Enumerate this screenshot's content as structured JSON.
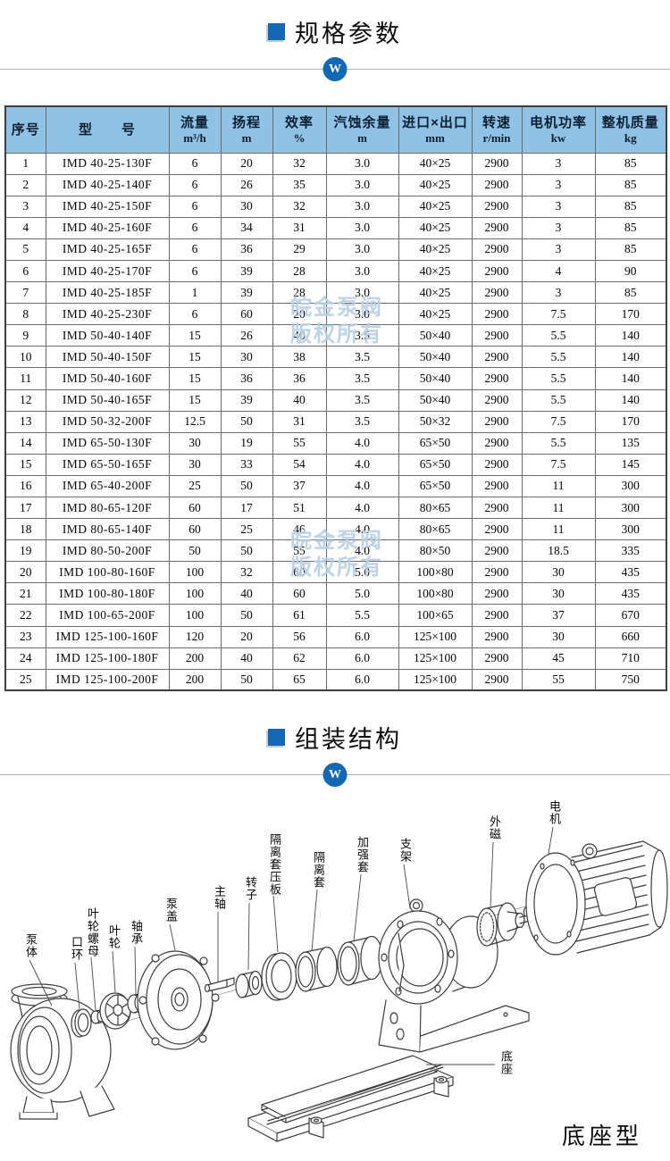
{
  "accent_color": "#1268b3",
  "table_header_bg": "#8fc2e4",
  "watermark": {
    "line1": "皖金泵阀",
    "line2": "版权所有",
    "color": "#b9cfe5"
  },
  "badge_letter": "W",
  "sections": {
    "spec_title": "规格参数",
    "assembly_title": "组装结构"
  },
  "spec_table": {
    "columns": [
      {
        "label": "序号",
        "unit": ""
      },
      {
        "label": "型　　号",
        "unit": ""
      },
      {
        "label": "流量",
        "unit": "m³/h"
      },
      {
        "label": "扬程",
        "unit": "m"
      },
      {
        "label": "效率",
        "unit": "%"
      },
      {
        "label": "汽蚀余量",
        "unit": "m"
      },
      {
        "label": "进口×出口",
        "unit": "mm"
      },
      {
        "label": "转速",
        "unit": "r/min"
      },
      {
        "label": "电机功率",
        "unit": "kw"
      },
      {
        "label": "整机质量",
        "unit": "kg"
      }
    ],
    "rows": [
      [
        "1",
        "IMD 40-25-130F",
        "6",
        "20",
        "32",
        "3.0",
        "40×25",
        "2900",
        "3",
        "85"
      ],
      [
        "2",
        "IMD 40-25-140F",
        "6",
        "26",
        "35",
        "3.0",
        "40×25",
        "2900",
        "3",
        "85"
      ],
      [
        "3",
        "IMD 40-25-150F",
        "6",
        "30",
        "32",
        "3.0",
        "40×25",
        "2900",
        "3",
        "85"
      ],
      [
        "4",
        "IMD 40-25-160F",
        "6",
        "34",
        "31",
        "3.0",
        "40×25",
        "2900",
        "3",
        "85"
      ],
      [
        "5",
        "IMD 40-25-165F",
        "6",
        "36",
        "29",
        "3.0",
        "40×25",
        "2900",
        "3",
        "85"
      ],
      [
        "6",
        "IMD 40-25-170F",
        "6",
        "39",
        "28",
        "3.0",
        "40×25",
        "2900",
        "4",
        "90"
      ],
      [
        "7",
        "IMD 40-25-185F",
        "1",
        "39",
        "28",
        "3.0",
        "40×25",
        "2900",
        "3",
        "85"
      ],
      [
        "8",
        "IMD 40-25-230F",
        "6",
        "60",
        "20",
        "3.0",
        "40×25",
        "2900",
        "7.5",
        "170"
      ],
      [
        "9",
        "IMD 50-40-140F",
        "15",
        "26",
        "40",
        "3.5",
        "50×40",
        "2900",
        "5.5",
        "140"
      ],
      [
        "10",
        "IMD 50-40-150F",
        "15",
        "30",
        "38",
        "3.5",
        "50×40",
        "2900",
        "5.5",
        "140"
      ],
      [
        "11",
        "IMD 50-40-160F",
        "15",
        "36",
        "36",
        "3.5",
        "50×40",
        "2900",
        "5.5",
        "140"
      ],
      [
        "12",
        "IMD 50-40-165F",
        "15",
        "39",
        "40",
        "3.5",
        "50×40",
        "2900",
        "5.5",
        "140"
      ],
      [
        "13",
        "IMD 50-32-200F",
        "12.5",
        "50",
        "31",
        "3.5",
        "50×32",
        "2900",
        "7.5",
        "170"
      ],
      [
        "14",
        "IMD 65-50-130F",
        "30",
        "19",
        "55",
        "4.0",
        "65×50",
        "2900",
        "5.5",
        "135"
      ],
      [
        "15",
        "IMD 65-50-165F",
        "30",
        "33",
        "54",
        "4.0",
        "65×50",
        "2900",
        "7.5",
        "145"
      ],
      [
        "16",
        "IMD 65-40-200F",
        "25",
        "50",
        "37",
        "4.0",
        "65×50",
        "2900",
        "11",
        "300"
      ],
      [
        "17",
        "IMD 80-65-120F",
        "60",
        "17",
        "51",
        "4.0",
        "80×65",
        "2900",
        "11",
        "300"
      ],
      [
        "18",
        "IMD 80-65-140F",
        "60",
        "25",
        "46",
        "4.0",
        "80×65",
        "2900",
        "11",
        "300"
      ],
      [
        "19",
        "IMD 80-50-200F",
        "50",
        "50",
        "55",
        "4.0",
        "80×50",
        "2900",
        "18.5",
        "335"
      ],
      [
        "20",
        "IMD 100-80-160F",
        "100",
        "32",
        "60",
        "5.0",
        "100×80",
        "2900",
        "30",
        "435"
      ],
      [
        "21",
        "IMD 100-80-180F",
        "100",
        "40",
        "60",
        "5.0",
        "100×80",
        "2900",
        "30",
        "435"
      ],
      [
        "22",
        "IMD 100-65-200F",
        "100",
        "50",
        "61",
        "5.5",
        "100×65",
        "2900",
        "37",
        "670"
      ],
      [
        "23",
        "IMD 125-100-160F",
        "120",
        "20",
        "56",
        "6.0",
        "125×100",
        "2900",
        "30",
        "660"
      ],
      [
        "24",
        "IMD 125-100-180F",
        "200",
        "40",
        "62",
        "6.0",
        "125×100",
        "2900",
        "45",
        "710"
      ],
      [
        "25",
        "IMD 125-100-200F",
        "200",
        "50",
        "65",
        "6.0",
        "125×100",
        "2900",
        "55",
        "750"
      ]
    ]
  },
  "diagram": {
    "parts": [
      "泵体",
      "口环",
      "叶轮螺母",
      "叶轮",
      "轴承",
      "泵盖",
      "主轴",
      "转子",
      "隔离套压板",
      "隔离套",
      "加强套",
      "支架",
      "外磁",
      "电机"
    ],
    "base_label": "底座",
    "caption": "底座型"
  }
}
